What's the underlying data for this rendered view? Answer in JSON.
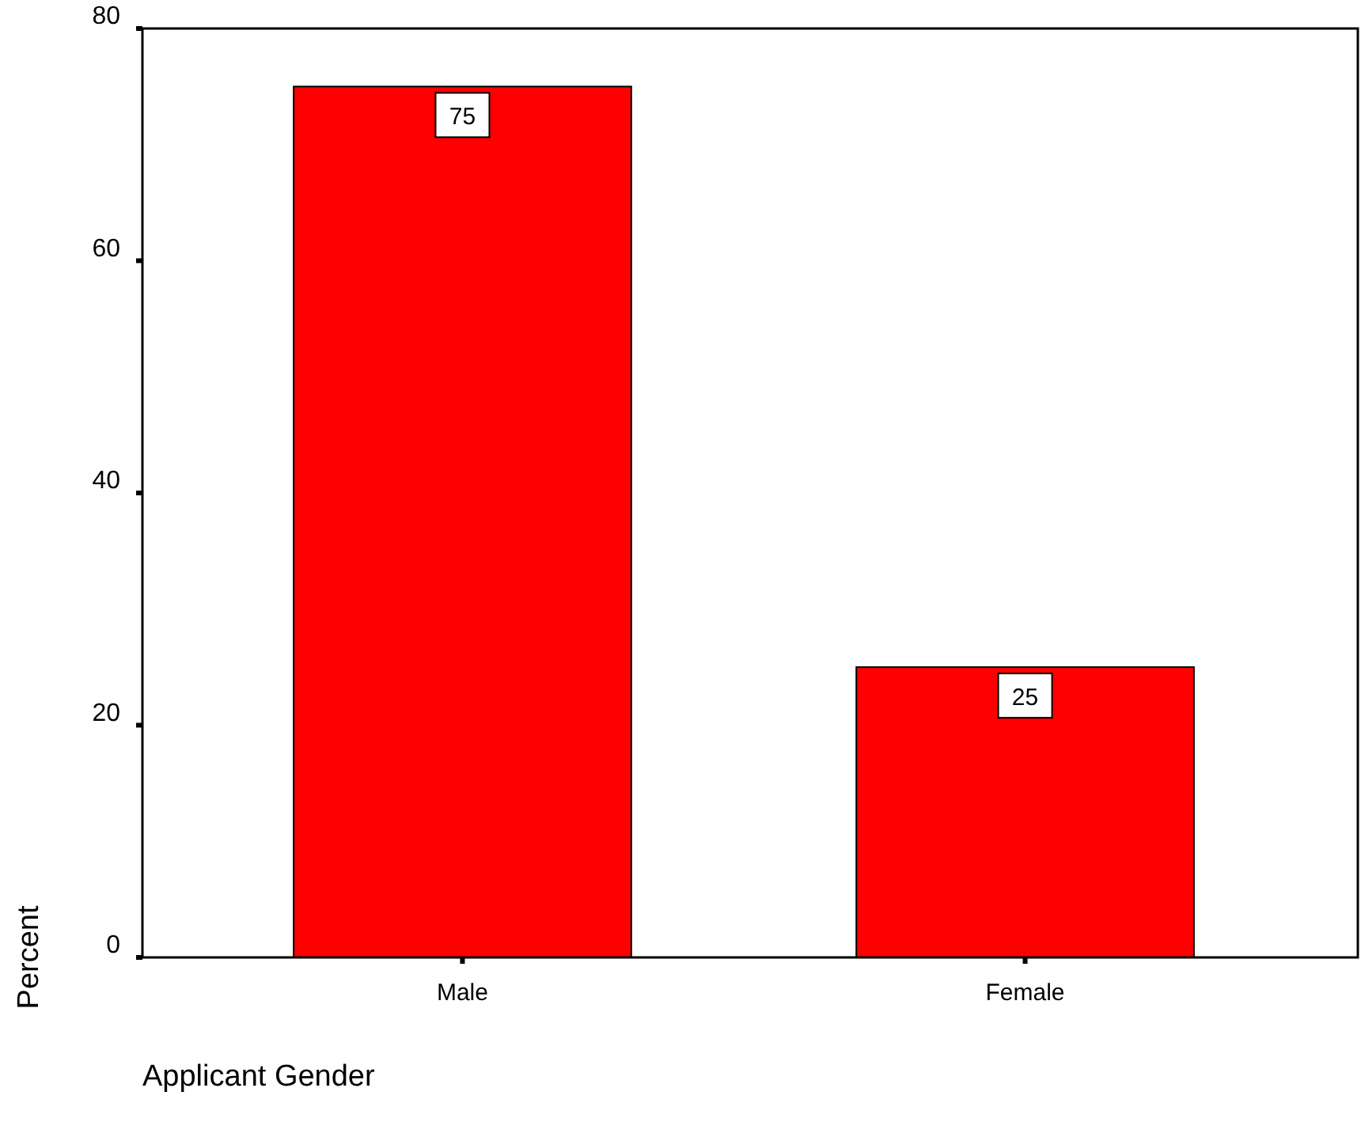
{
  "chart_data": {
    "type": "bar",
    "categories": [
      "Male",
      "Female"
    ],
    "values": [
      75,
      25
    ],
    "color": "#ff0000",
    "xlabel": "Applicant Gender",
    "ylabel": "Percent",
    "ylim": [
      0,
      80
    ],
    "yticks": [
      0,
      20,
      40,
      60,
      80
    ],
    "data_labels": true,
    "grid": false
  }
}
